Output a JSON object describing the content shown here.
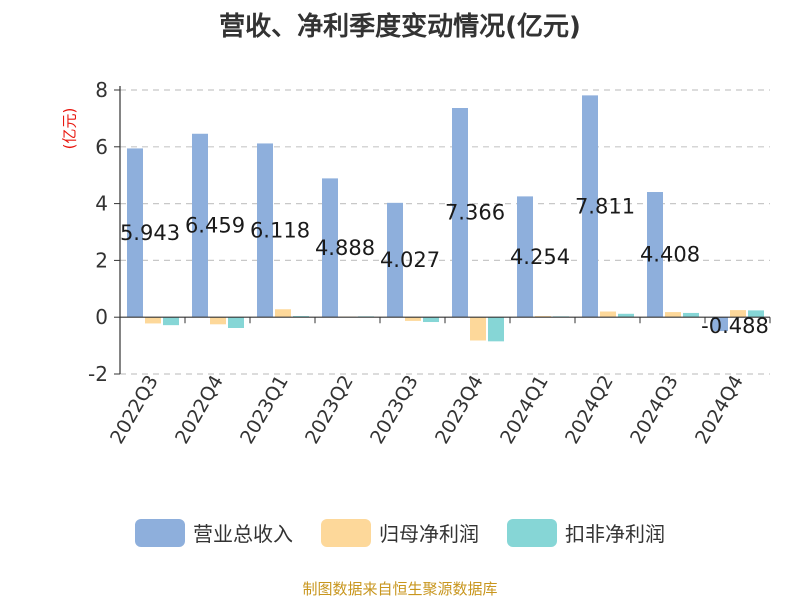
{
  "chart_data": {
    "type": "bar",
    "title": "营收、净利季度变动情况(亿元)",
    "ylabel": "(亿元)",
    "ylim": [
      -2,
      8
    ],
    "yticks": [
      -2,
      0,
      2,
      4,
      6,
      8
    ],
    "grid": true,
    "legend_position": "bottom",
    "categories": [
      "2022Q3",
      "2022Q4",
      "2023Q1",
      "2023Q2",
      "2023Q3",
      "2023Q4",
      "2024Q1",
      "2024Q2",
      "2024Q3",
      "2024Q4"
    ],
    "series": [
      {
        "name": "营业总收入",
        "color": "#8eafdc",
        "values": [
          5.943,
          6.459,
          6.118,
          4.888,
          4.027,
          7.366,
          4.254,
          7.811,
          4.408,
          -0.488
        ],
        "labels": [
          "5.943",
          "6.459",
          "6.118",
          "4.888",
          "4.027",
          "7.366",
          "4.254",
          "7.811",
          "4.408",
          "-0.488"
        ]
      },
      {
        "name": "归母净利润",
        "color": "#fdd89a",
        "values": [
          -0.22,
          -0.25,
          0.28,
          0.02,
          -0.13,
          -0.82,
          0.04,
          0.2,
          0.18,
          0.25
        ]
      },
      {
        "name": "扣非净利润",
        "color": "#86d6d6",
        "values": [
          -0.28,
          -0.38,
          0.04,
          0.03,
          -0.17,
          -0.85,
          0.03,
          0.12,
          0.15,
          0.24
        ]
      }
    ]
  },
  "source": "制图数据来自恒生聚源数据库"
}
